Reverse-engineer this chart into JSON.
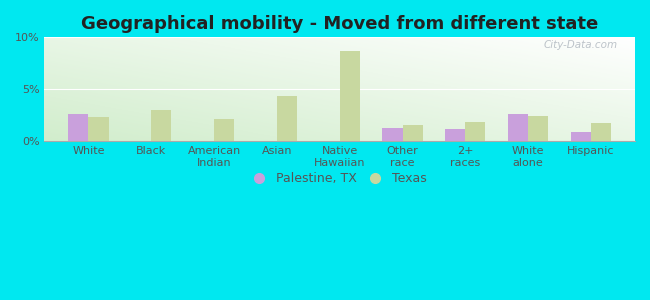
{
  "title": "Geographical mobility - Moved from different state",
  "categories": [
    "White",
    "Black",
    "American\nIndian",
    "Asian",
    "Native\nHawaiian",
    "Other\nrace",
    "2+\nraces",
    "White\nalone",
    "Hispanic"
  ],
  "palestine_values": [
    2.6,
    0.0,
    0.0,
    0.0,
    0.0,
    1.3,
    1.2,
    2.6,
    0.9
  ],
  "texas_values": [
    2.3,
    3.0,
    2.1,
    4.3,
    8.7,
    1.6,
    1.8,
    2.4,
    1.7
  ],
  "palestine_color": "#c9a0dc",
  "texas_color": "#c8d8a0",
  "outer_bg": "#00e8f0",
  "ylim": [
    0,
    10
  ],
  "yticks": [
    0,
    5,
    10
  ],
  "ytick_labels": [
    "0%",
    "5%",
    "10%"
  ],
  "legend_palestine": "Palestine, TX",
  "legend_texas": "Texas",
  "bar_width": 0.32,
  "title_fontsize": 13,
  "tick_fontsize": 8,
  "legend_fontsize": 9
}
